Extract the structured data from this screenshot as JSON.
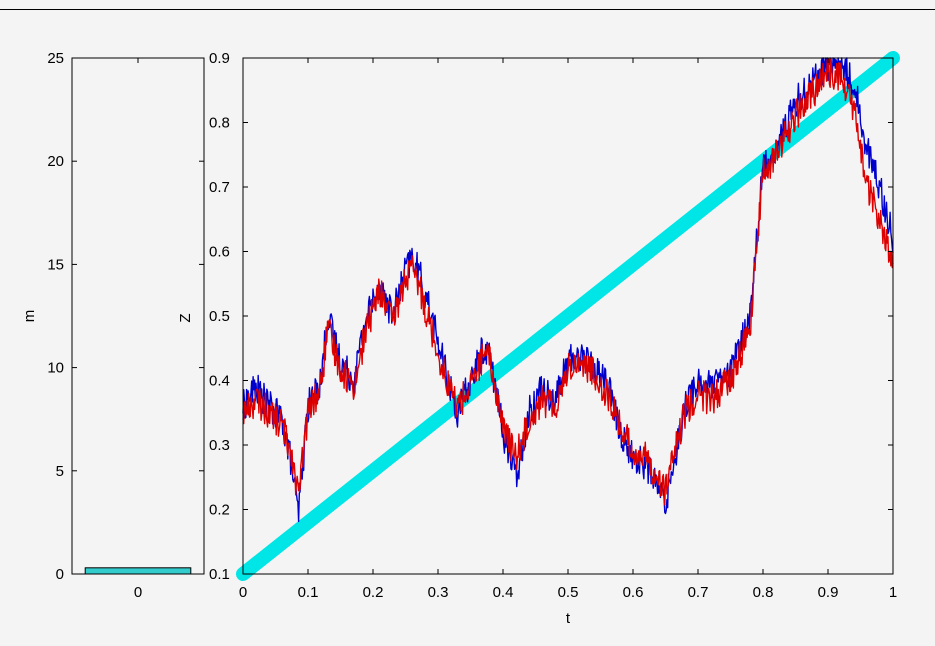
{
  "chart_data": [
    {
      "type": "bar",
      "ylabel": "m",
      "ylim": [
        0,
        25
      ],
      "yticks": [
        0,
        5,
        10,
        15,
        20,
        25
      ],
      "categories": [
        "0"
      ],
      "values": [
        0.3
      ],
      "bar_color": "#33cccc"
    },
    {
      "type": "line",
      "xlabel": "t",
      "ylabel": "Z",
      "xlim": [
        0,
        1
      ],
      "ylim": [
        0.1,
        0.9
      ],
      "xticks": [
        0,
        0.1,
        0.2,
        0.3,
        0.4,
        0.5,
        0.6,
        0.7,
        0.8,
        0.9,
        1
      ],
      "yticks": [
        0.1,
        0.2,
        0.3,
        0.4,
        0.5,
        0.6,
        0.7,
        0.8,
        0.9
      ],
      "grid": false,
      "series": [
        {
          "color": "#00e5e5",
          "x": [
            0,
            1
          ],
          "y": [
            0.1,
            0.9
          ]
        },
        {
          "color": "#0000cc",
          "x": [
            0,
            0.02,
            0.04,
            0.06,
            0.075,
            0.085,
            0.1,
            0.12,
            0.13,
            0.15,
            0.17,
            0.19,
            0.21,
            0.23,
            0.25,
            0.26,
            0.27,
            0.29,
            0.31,
            0.33,
            0.35,
            0.37,
            0.38,
            0.4,
            0.42,
            0.44,
            0.46,
            0.48,
            0.5,
            0.52,
            0.54,
            0.56,
            0.58,
            0.6,
            0.62,
            0.65,
            0.68,
            0.7,
            0.72,
            0.75,
            0.78,
            0.8,
            0.82,
            0.85,
            0.88,
            0.9,
            0.92,
            0.94,
            0.96,
            0.98,
            1.0
          ],
          "y": [
            0.36,
            0.39,
            0.36,
            0.34,
            0.27,
            0.19,
            0.36,
            0.4,
            0.5,
            0.43,
            0.4,
            0.5,
            0.55,
            0.5,
            0.57,
            0.59,
            0.57,
            0.5,
            0.42,
            0.35,
            0.4,
            0.45,
            0.44,
            0.32,
            0.25,
            0.35,
            0.39,
            0.37,
            0.43,
            0.44,
            0.42,
            0.4,
            0.32,
            0.28,
            0.27,
            0.21,
            0.36,
            0.4,
            0.39,
            0.41,
            0.5,
            0.73,
            0.76,
            0.83,
            0.87,
            0.89,
            0.89,
            0.86,
            0.76,
            0.7,
            0.62
          ]
        },
        {
          "color": "#dd0000",
          "x": [
            0,
            0.02,
            0.04,
            0.06,
            0.075,
            0.085,
            0.1,
            0.12,
            0.13,
            0.15,
            0.17,
            0.19,
            0.21,
            0.23,
            0.25,
            0.26,
            0.27,
            0.29,
            0.31,
            0.33,
            0.35,
            0.37,
            0.38,
            0.4,
            0.42,
            0.44,
            0.46,
            0.48,
            0.5,
            0.52,
            0.54,
            0.56,
            0.58,
            0.6,
            0.62,
            0.65,
            0.68,
            0.7,
            0.72,
            0.75,
            0.78,
            0.8,
            0.82,
            0.85,
            0.88,
            0.9,
            0.92,
            0.94,
            0.96,
            0.98,
            1.0
          ],
          "y": [
            0.35,
            0.37,
            0.35,
            0.33,
            0.29,
            0.22,
            0.35,
            0.39,
            0.48,
            0.42,
            0.39,
            0.48,
            0.54,
            0.49,
            0.56,
            0.57,
            0.55,
            0.48,
            0.41,
            0.36,
            0.39,
            0.44,
            0.43,
            0.33,
            0.28,
            0.34,
            0.37,
            0.36,
            0.42,
            0.43,
            0.41,
            0.38,
            0.33,
            0.29,
            0.28,
            0.23,
            0.35,
            0.38,
            0.37,
            0.4,
            0.48,
            0.72,
            0.75,
            0.81,
            0.85,
            0.88,
            0.87,
            0.82,
            0.7,
            0.65,
            0.57
          ]
        }
      ]
    }
  ]
}
